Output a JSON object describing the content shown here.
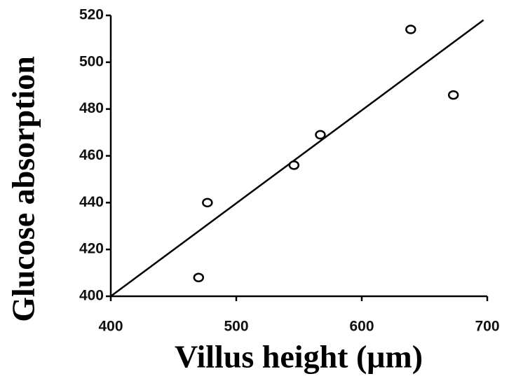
{
  "chart_data": {
    "type": "scatter",
    "xlabel": "Villus height (μm)",
    "ylabel": "Glucose absorption",
    "x": [
      470,
      477,
      546,
      567,
      639,
      673
    ],
    "values": [
      408,
      440,
      456,
      469,
      514,
      486
    ],
    "color": "#000000",
    "trendline": {
      "x": [
        400,
        697
      ],
      "y": [
        400,
        518
      ]
    },
    "xlim": [
      400,
      700
    ],
    "xticks": [
      400,
      500,
      600,
      700
    ],
    "ylim": [
      400,
      520
    ],
    "yticks": [
      400,
      420,
      440,
      460,
      480,
      500,
      520
    ]
  }
}
